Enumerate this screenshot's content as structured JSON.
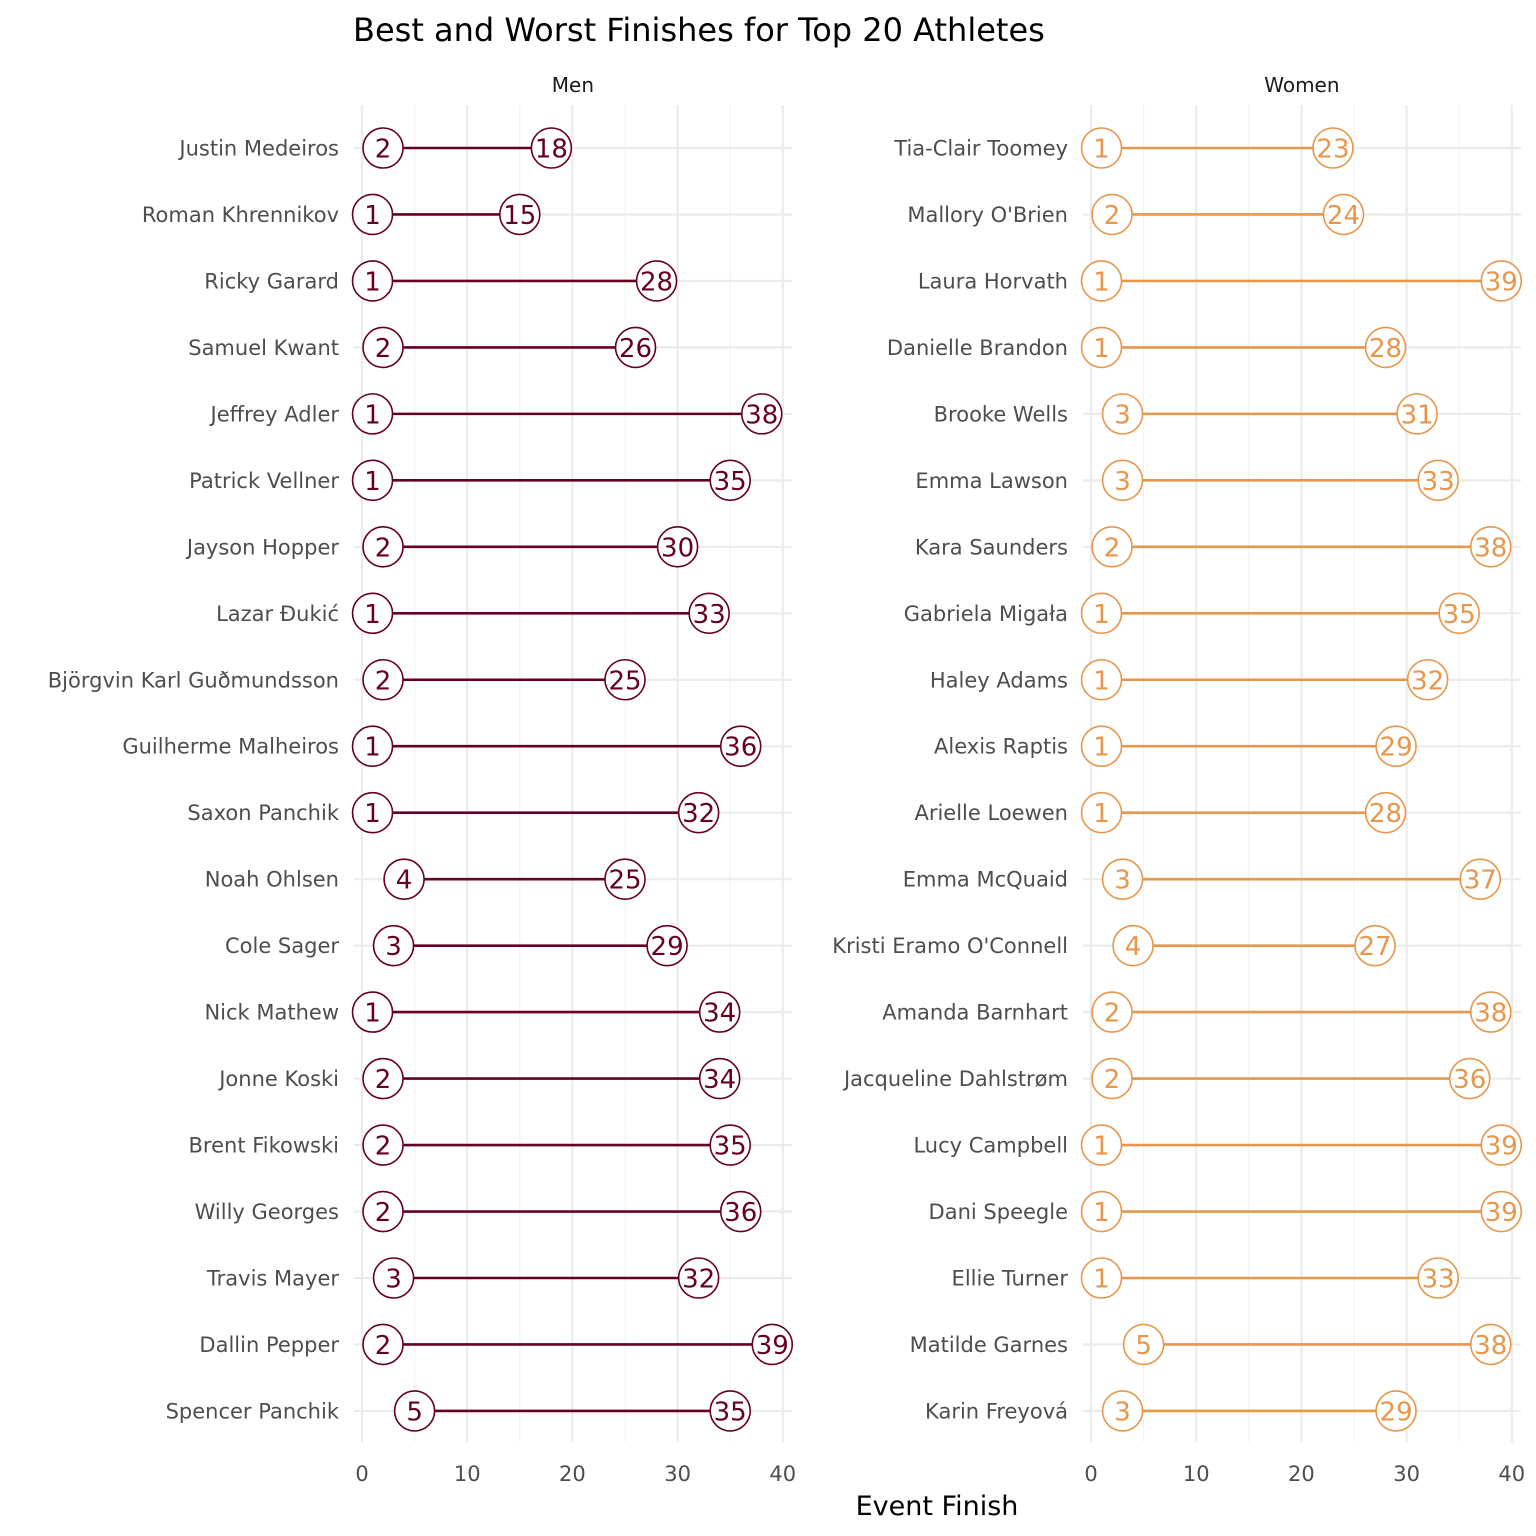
{
  "chart_data": {
    "type": "dumbbell",
    "title": "Best and Worst Finishes for Top 20 Athletes",
    "xlabel": "Event Finish",
    "ylabel": "",
    "xlim": [
      0,
      40
    ],
    "x_ticks": [
      0,
      10,
      20,
      30,
      40
    ],
    "grid": true,
    "legend": "none",
    "panels": [
      {
        "name": "Men",
        "color": "#67001f",
        "athletes": [
          "Justin Medeiros",
          "Roman Khrennikov",
          "Ricky Garard",
          "Samuel Kwant",
          "Jeffrey Adler",
          "Patrick Vellner",
          "Jayson Hopper",
          "Lazar Đukić",
          "Björgvin Karl Guðmundsson",
          "Guilherme Malheiros",
          "Saxon Panchik",
          "Noah Ohlsen",
          "Cole Sager",
          "Nick Mathew",
          "Jonne Koski",
          "Brent Fikowski",
          "Willy Georges",
          "Travis Mayer",
          "Dallin Pepper",
          "Spencer Panchik"
        ],
        "best": [
          2,
          1,
          1,
          2,
          1,
          1,
          2,
          1,
          2,
          1,
          1,
          4,
          3,
          1,
          2,
          2,
          2,
          3,
          2,
          5
        ],
        "worst": [
          18,
          15,
          28,
          26,
          38,
          35,
          30,
          33,
          25,
          36,
          32,
          25,
          29,
          34,
          34,
          35,
          36,
          32,
          39,
          35
        ]
      },
      {
        "name": "Women",
        "color": "#e8964b",
        "athletes": [
          "Tia-Clair Toomey",
          "Mallory O'Brien",
          "Laura Horvath",
          "Danielle Brandon",
          "Brooke Wells",
          "Emma Lawson",
          "Kara Saunders",
          "Gabriela Migała",
          "Haley Adams",
          "Alexis Raptis",
          "Arielle Loewen",
          "Emma McQuaid",
          "Kristi Eramo O'Connell",
          "Amanda Barnhart",
          "Jacqueline Dahlstrøm",
          "Lucy Campbell",
          "Dani Speegle",
          "Ellie Turner",
          "Matilde Garnes",
          "Karin Freyová"
        ],
        "best": [
          1,
          2,
          1,
          1,
          3,
          3,
          2,
          1,
          1,
          1,
          1,
          3,
          4,
          2,
          2,
          1,
          1,
          1,
          5,
          3
        ],
        "worst": [
          23,
          24,
          39,
          28,
          31,
          33,
          38,
          35,
          32,
          29,
          28,
          37,
          27,
          38,
          36,
          39,
          39,
          33,
          38,
          29
        ]
      }
    ]
  }
}
